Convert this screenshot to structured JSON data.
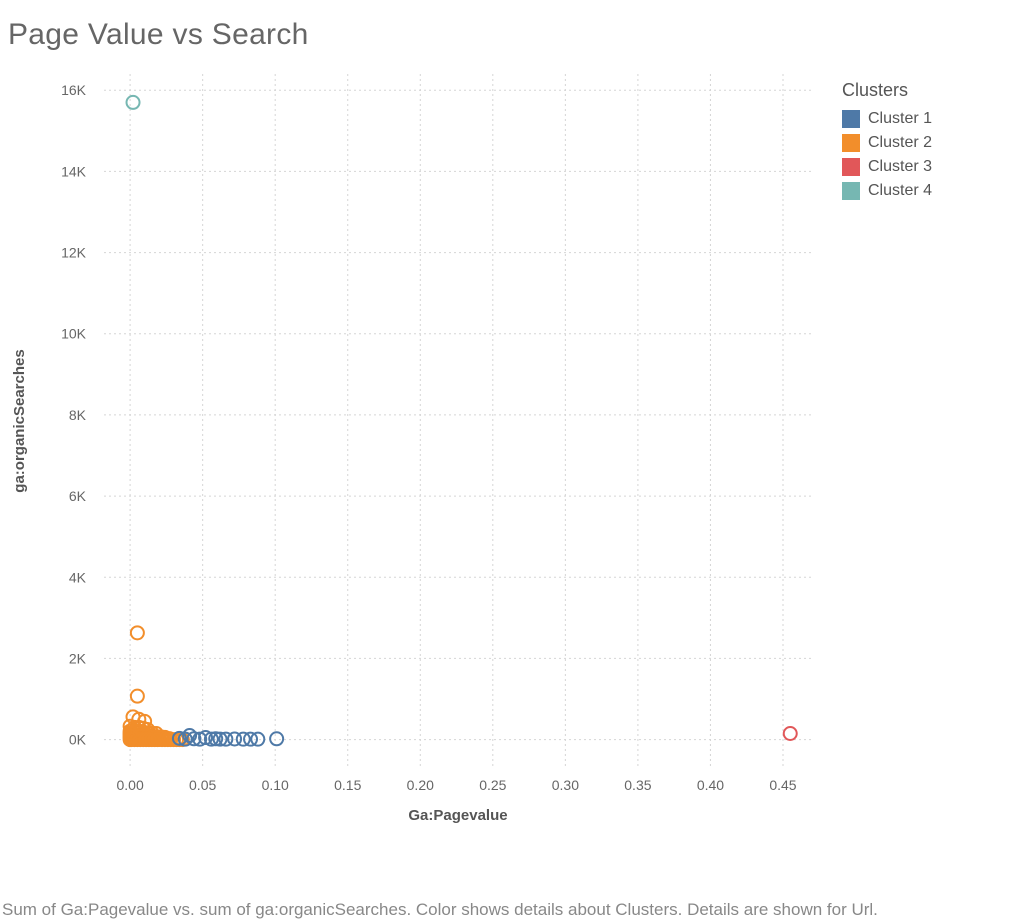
{
  "title": "Page Value vs Search",
  "caption": "Sum of Ga:Pagevalue vs. sum of ga:organicSearches.  Color shows details about Clusters.  Details are shown for Url.",
  "chart": {
    "type": "scatter",
    "xlabel": "Ga:Pagevalue",
    "ylabel": "ga:organicSearches",
    "xlim": [
      -0.018,
      0.47
    ],
    "ylim": [
      -700,
      16400
    ],
    "xticks": [
      0.0,
      0.05,
      0.1,
      0.15,
      0.2,
      0.25,
      0.3,
      0.35,
      0.4,
      0.45
    ],
    "xtick_labels": [
      "0.00",
      "0.05",
      "0.10",
      "0.15",
      "0.20",
      "0.25",
      "0.30",
      "0.35",
      "0.40",
      "0.45"
    ],
    "yticks": [
      0,
      2000,
      4000,
      6000,
      8000,
      10000,
      12000,
      14000,
      16000
    ],
    "ytick_labels": [
      "0K",
      "2K",
      "4K",
      "6K",
      "8K",
      "10K",
      "12K",
      "14K",
      "16K"
    ],
    "marker_radius": 6.5,
    "marker_stroke_width": 2,
    "marker_fill": "none",
    "grid_color": "#d5d5d5",
    "background_color": "#ffffff",
    "clusters": {
      "Cluster 1": "#4e79a7",
      "Cluster 2": "#f28e2b",
      "Cluster 3": "#e15759",
      "Cluster 4": "#76b7b2"
    },
    "points": [
      {
        "x": 0.002,
        "y": 15700,
        "c": "Cluster 4"
      },
      {
        "x": 0.455,
        "y": 150,
        "c": "Cluster 3"
      },
      {
        "x": 0.005,
        "y": 2630,
        "c": "Cluster 2"
      },
      {
        "x": 0.005,
        "y": 1070,
        "c": "Cluster 2"
      },
      {
        "x": 0.002,
        "y": 560,
        "c": "Cluster 2"
      },
      {
        "x": 0.006,
        "y": 500,
        "c": "Cluster 2"
      },
      {
        "x": 0.01,
        "y": 450,
        "c": "Cluster 2"
      },
      {
        "x": 0.0,
        "y": 330,
        "c": "Cluster 2"
      },
      {
        "x": 0.003,
        "y": 300,
        "c": "Cluster 2"
      },
      {
        "x": 0.006,
        "y": 300,
        "c": "Cluster 2"
      },
      {
        "x": 0.009,
        "y": 280,
        "c": "Cluster 2"
      },
      {
        "x": 0.012,
        "y": 250,
        "c": "Cluster 2"
      },
      {
        "x": 0.0,
        "y": 210,
        "c": "Cluster 2"
      },
      {
        "x": 0.003,
        "y": 200,
        "c": "Cluster 2"
      },
      {
        "x": 0.006,
        "y": 190,
        "c": "Cluster 2"
      },
      {
        "x": 0.009,
        "y": 180,
        "c": "Cluster 2"
      },
      {
        "x": 0.012,
        "y": 170,
        "c": "Cluster 2"
      },
      {
        "x": 0.015,
        "y": 160,
        "c": "Cluster 2"
      },
      {
        "x": 0.018,
        "y": 150,
        "c": "Cluster 2"
      },
      {
        "x": 0.0,
        "y": 130,
        "c": "Cluster 2"
      },
      {
        "x": 0.002,
        "y": 120,
        "c": "Cluster 2"
      },
      {
        "x": 0.004,
        "y": 110,
        "c": "Cluster 2"
      },
      {
        "x": 0.006,
        "y": 100,
        "c": "Cluster 2"
      },
      {
        "x": 0.008,
        "y": 95,
        "c": "Cluster 2"
      },
      {
        "x": 0.01,
        "y": 90,
        "c": "Cluster 2"
      },
      {
        "x": 0.012,
        "y": 85,
        "c": "Cluster 2"
      },
      {
        "x": 0.014,
        "y": 80,
        "c": "Cluster 2"
      },
      {
        "x": 0.016,
        "y": 75,
        "c": "Cluster 2"
      },
      {
        "x": 0.018,
        "y": 70,
        "c": "Cluster 2"
      },
      {
        "x": 0.02,
        "y": 65,
        "c": "Cluster 2"
      },
      {
        "x": 0.022,
        "y": 60,
        "c": "Cluster 2"
      },
      {
        "x": 0.024,
        "y": 55,
        "c": "Cluster 2"
      },
      {
        "x": 0.0,
        "y": 50,
        "c": "Cluster 2"
      },
      {
        "x": 0.001,
        "y": 45,
        "c": "Cluster 2"
      },
      {
        "x": 0.002,
        "y": 40,
        "c": "Cluster 2"
      },
      {
        "x": 0.003,
        "y": 35,
        "c": "Cluster 2"
      },
      {
        "x": 0.004,
        "y": 30,
        "c": "Cluster 2"
      },
      {
        "x": 0.005,
        "y": 25,
        "c": "Cluster 2"
      },
      {
        "x": 0.006,
        "y": 20,
        "c": "Cluster 2"
      },
      {
        "x": 0.007,
        "y": 18,
        "c": "Cluster 2"
      },
      {
        "x": 0.008,
        "y": 15,
        "c": "Cluster 2"
      },
      {
        "x": 0.009,
        "y": 12,
        "c": "Cluster 2"
      },
      {
        "x": 0.01,
        "y": 10,
        "c": "Cluster 2"
      },
      {
        "x": 0.011,
        "y": 8,
        "c": "Cluster 2"
      },
      {
        "x": 0.012,
        "y": 6,
        "c": "Cluster 2"
      },
      {
        "x": 0.013,
        "y": 5,
        "c": "Cluster 2"
      },
      {
        "x": 0.014,
        "y": 4,
        "c": "Cluster 2"
      },
      {
        "x": 0.016,
        "y": 3,
        "c": "Cluster 2"
      },
      {
        "x": 0.018,
        "y": 2,
        "c": "Cluster 2"
      },
      {
        "x": 0.02,
        "y": 1,
        "c": "Cluster 2"
      },
      {
        "x": 0.022,
        "y": 0,
        "c": "Cluster 2"
      },
      {
        "x": 0.024,
        "y": 0,
        "c": "Cluster 2"
      },
      {
        "x": 0.026,
        "y": 0,
        "c": "Cluster 2"
      },
      {
        "x": 0.028,
        "y": 0,
        "c": "Cluster 2"
      },
      {
        "x": 0.03,
        "y": 0,
        "c": "Cluster 2"
      },
      {
        "x": 0.032,
        "y": 0,
        "c": "Cluster 2"
      },
      {
        "x": 0.034,
        "y": 0,
        "c": "Cluster 2"
      },
      {
        "x": 0.036,
        "y": 0,
        "c": "Cluster 2"
      },
      {
        "x": 0.001,
        "y": 0,
        "c": "Cluster 2"
      },
      {
        "x": 0.003,
        "y": 0,
        "c": "Cluster 2"
      },
      {
        "x": 0.005,
        "y": 0,
        "c": "Cluster 2"
      },
      {
        "x": 0.007,
        "y": 0,
        "c": "Cluster 2"
      },
      {
        "x": 0.009,
        "y": 0,
        "c": "Cluster 2"
      },
      {
        "x": 0.011,
        "y": 0,
        "c": "Cluster 2"
      },
      {
        "x": 0.013,
        "y": 0,
        "c": "Cluster 2"
      },
      {
        "x": 0.015,
        "y": 0,
        "c": "Cluster 2"
      },
      {
        "x": 0.017,
        "y": 0,
        "c": "Cluster 2"
      },
      {
        "x": 0.019,
        "y": 0,
        "c": "Cluster 2"
      },
      {
        "x": 0.0,
        "y": 0,
        "c": "Cluster 2"
      },
      {
        "x": 0.0,
        "y": 80,
        "c": "Cluster 2"
      },
      {
        "x": 0.0,
        "y": 160,
        "c": "Cluster 2"
      },
      {
        "x": 0.025,
        "y": 30,
        "c": "Cluster 2"
      },
      {
        "x": 0.027,
        "y": 25,
        "c": "Cluster 2"
      },
      {
        "x": 0.034,
        "y": 30,
        "c": "Cluster 1"
      },
      {
        "x": 0.038,
        "y": 10,
        "c": "Cluster 1"
      },
      {
        "x": 0.041,
        "y": 100,
        "c": "Cluster 1"
      },
      {
        "x": 0.044,
        "y": 20,
        "c": "Cluster 1"
      },
      {
        "x": 0.048,
        "y": 10,
        "c": "Cluster 1"
      },
      {
        "x": 0.052,
        "y": 50,
        "c": "Cluster 1"
      },
      {
        "x": 0.056,
        "y": 10,
        "c": "Cluster 1"
      },
      {
        "x": 0.059,
        "y": 20,
        "c": "Cluster 1"
      },
      {
        "x": 0.062,
        "y": 10,
        "c": "Cluster 1"
      },
      {
        "x": 0.066,
        "y": 10,
        "c": "Cluster 1"
      },
      {
        "x": 0.072,
        "y": 15,
        "c": "Cluster 1"
      },
      {
        "x": 0.078,
        "y": 10,
        "c": "Cluster 1"
      },
      {
        "x": 0.083,
        "y": 10,
        "c": "Cluster 1"
      },
      {
        "x": 0.088,
        "y": 10,
        "c": "Cluster 1"
      },
      {
        "x": 0.101,
        "y": 20,
        "c": "Cluster 1"
      }
    ]
  },
  "legend": {
    "title": "Clusters",
    "items": [
      {
        "label": "Cluster 1",
        "color": "#4e79a7"
      },
      {
        "label": "Cluster 2",
        "color": "#f28e2b"
      },
      {
        "label": "Cluster 3",
        "color": "#e15759"
      },
      {
        "label": "Cluster 4",
        "color": "#76b7b2"
      }
    ]
  }
}
